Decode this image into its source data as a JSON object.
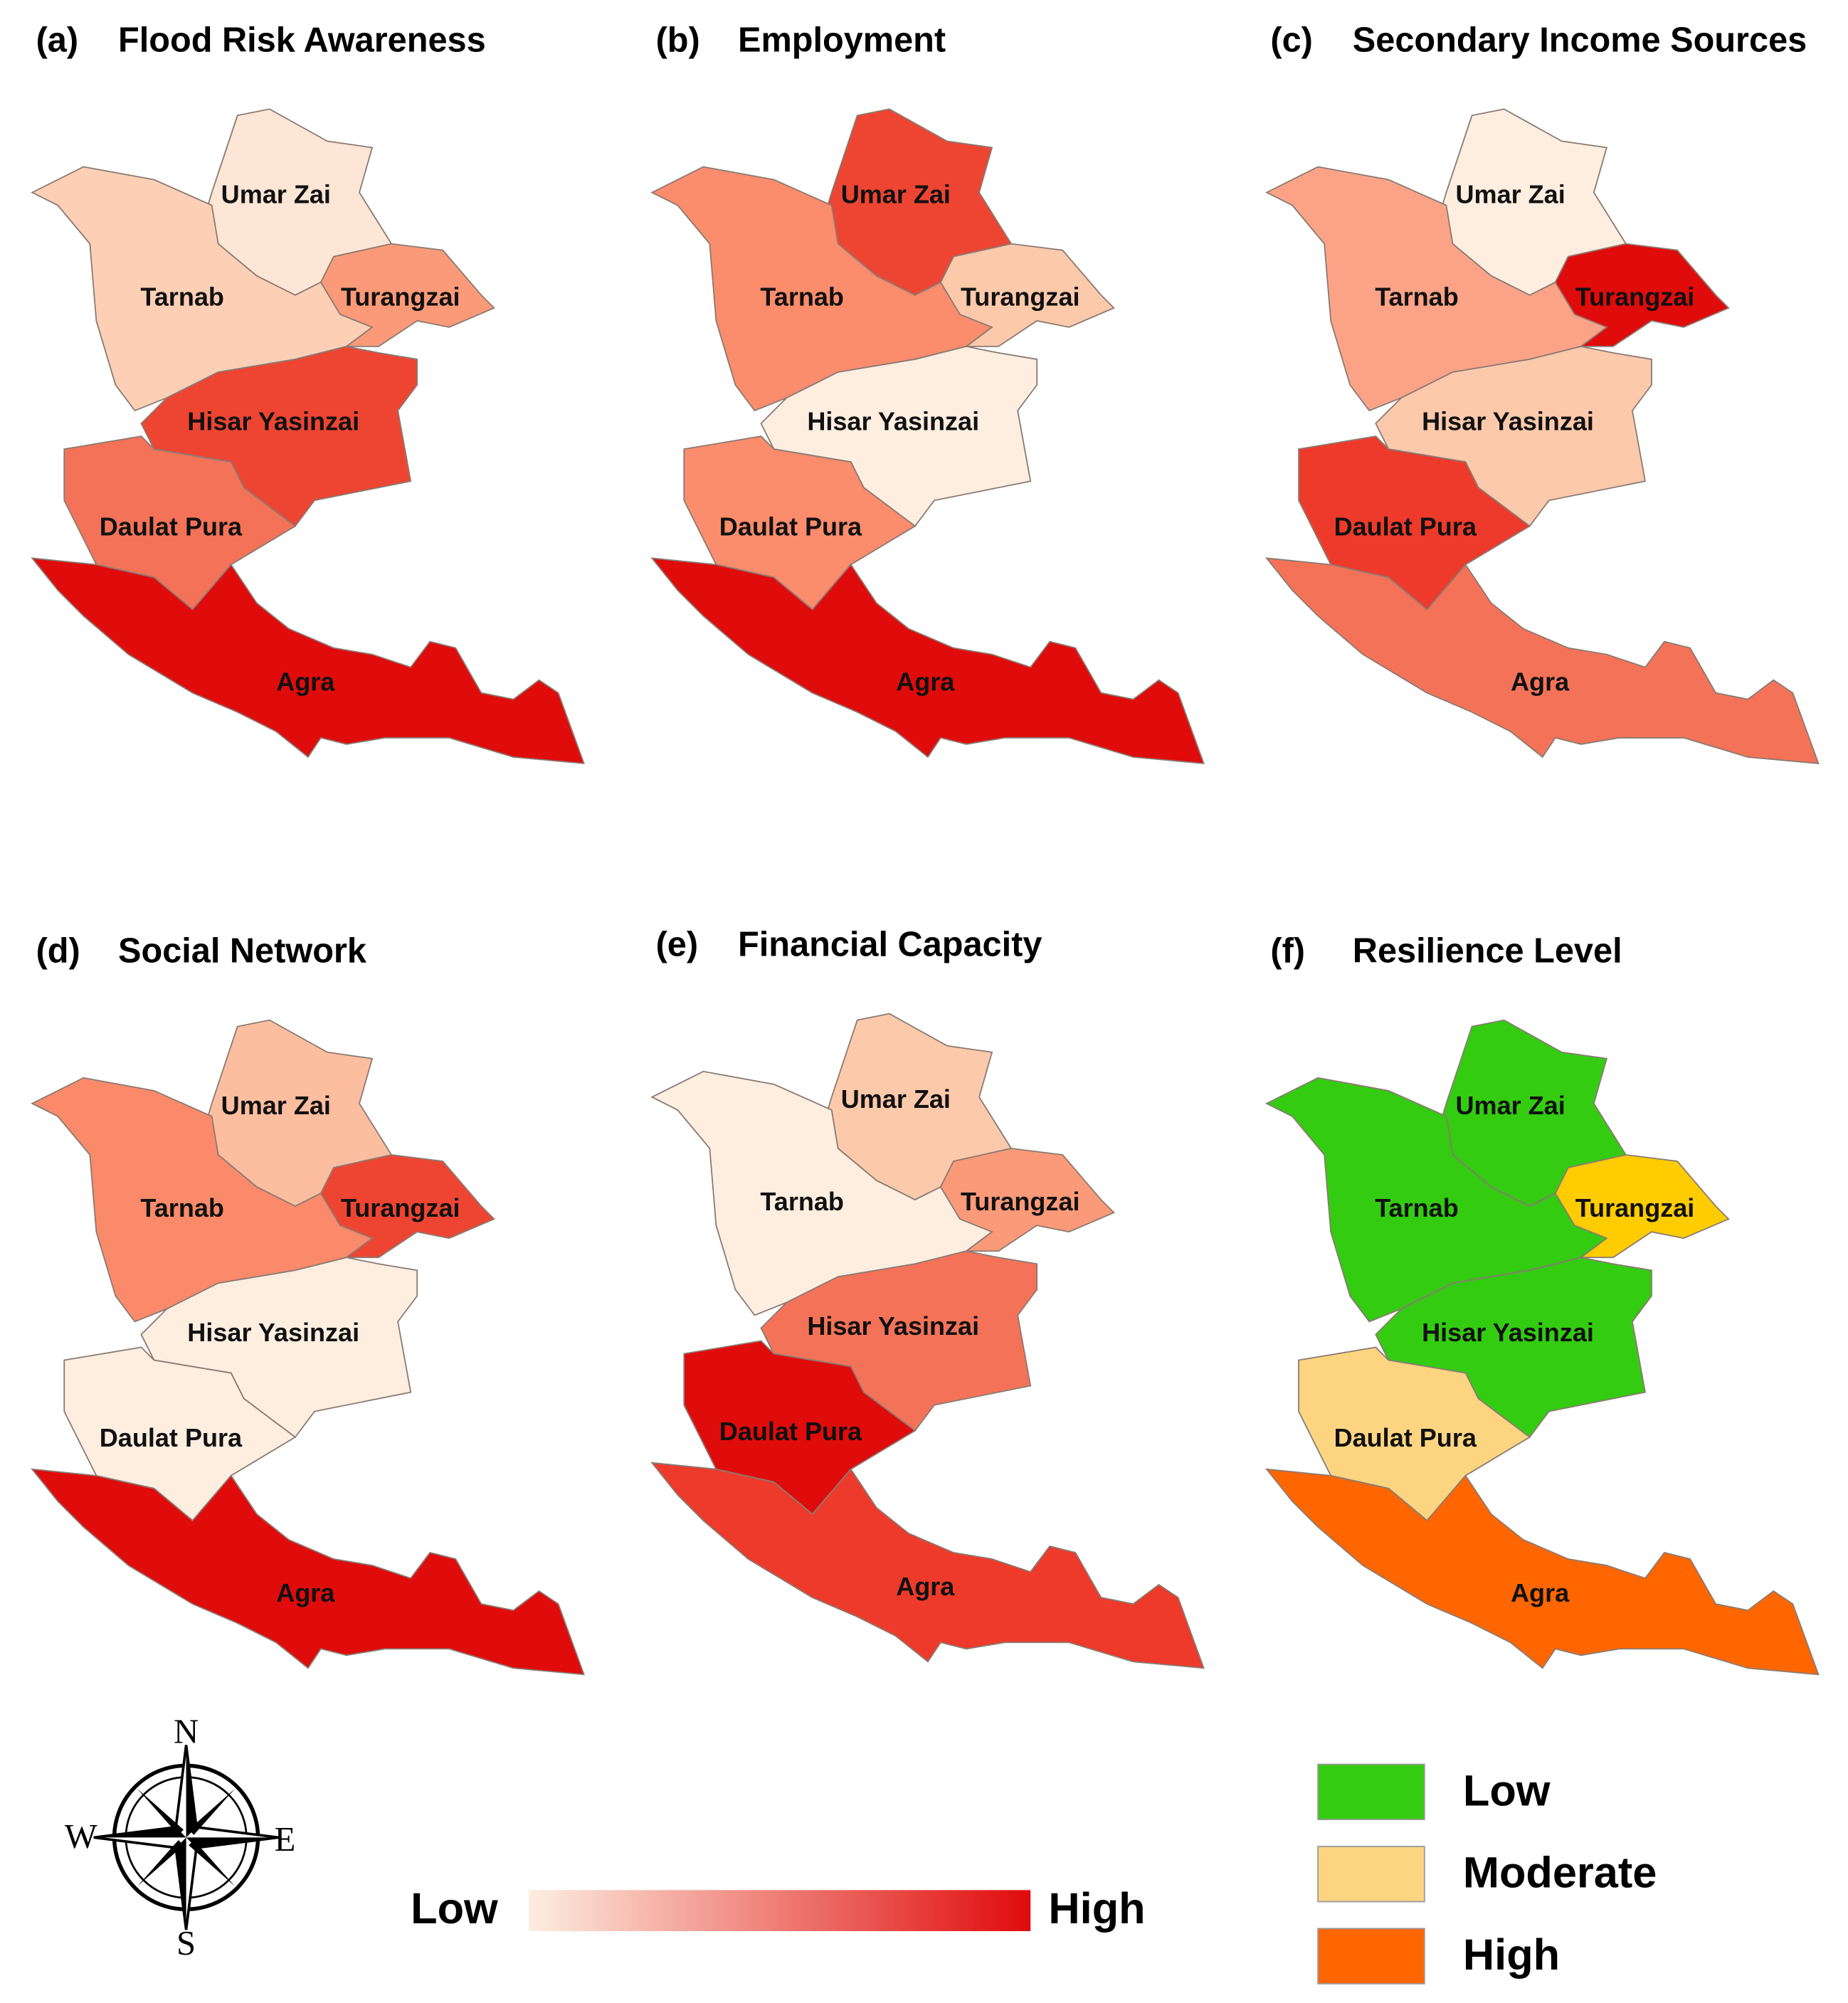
{
  "regions": [
    "Umar Zai",
    "Tarnab",
    "Turangzai",
    "Hisar Yasinzai",
    "Daulat Pura",
    "Agra"
  ],
  "panels": [
    {
      "label": "(a)",
      "title": "Flood Risk Awareness",
      "fills": [
        "#fde6d6",
        "#fdd0b6",
        "#fb9a78",
        "#ee4533",
        "#f47358",
        "#e00b0b"
      ]
    },
    {
      "label": "(b)",
      "title": "Employment",
      "fills": [
        "#ee4533",
        "#fb8c6c",
        "#fdc9ab",
        "#fdeee0",
        "#fb8c6c",
        "#e00b0b"
      ]
    },
    {
      "label": "(c)",
      "title": "Secondary Income Sources",
      "fills": [
        "#fdeee0",
        "#fca387",
        "#e00b0b",
        "#fdc9ab",
        "#ee3a2a",
        "#f47358"
      ]
    },
    {
      "label": "(d)",
      "title": "Social Network",
      "fills": [
        "#fdbea0",
        "#fa8a6a",
        "#ee4533",
        "#fdeee0",
        "#fdeee0",
        "#e00b0b"
      ]
    },
    {
      "label": "(e)",
      "title": "Financial Capacity",
      "fills": [
        "#fdc9ab",
        "#fdeee0",
        "#fb9a78",
        "#f47358",
        "#e00b0b",
        "#ee3a2a"
      ]
    },
    {
      "label": "(f)",
      "title": "Resilience Level",
      "fills": [
        "#33cc11",
        "#33cc11",
        "#ffcc00",
        "#33cc11",
        "#fdd581",
        "#ff6600"
      ]
    }
  ],
  "compass": {
    "north": "N",
    "east": "E",
    "south": "S",
    "west": "W"
  },
  "scale_legend": {
    "low": "Low",
    "high": "High",
    "colors": [
      "#fdeee0",
      "#e00b0b"
    ]
  },
  "class_legend": [
    {
      "name": "Low",
      "color": "#33cc11"
    },
    {
      "name": "Moderate",
      "color": "#fdd581"
    },
    {
      "name": "High",
      "color": "#ff6600"
    }
  ]
}
